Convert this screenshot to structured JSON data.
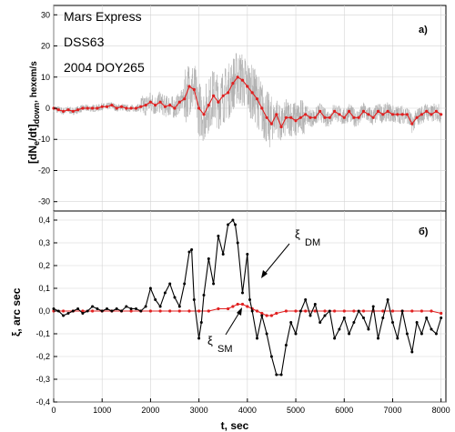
{
  "chart_data": [
    {
      "type": "line",
      "panel_label": "a)",
      "info_lines": [
        "Mars Express",
        "DSS63",
        "2004 DOY265"
      ],
      "ylabel": {
        "main": "[dN",
        "sub1": "e",
        "mid": "/dt]",
        "sub2": "down",
        "tail": ", hexem/s"
      },
      "xlim": [
        0,
        8100
      ],
      "ylim": [
        -33,
        33
      ],
      "yticks": [
        -30,
        -20,
        -10,
        0,
        10,
        20,
        30
      ],
      "grid": true,
      "series": [
        {
          "color": "#e02020",
          "marker": "dot",
          "x": [
            0,
            100,
            200,
            300,
            400,
            500,
            600,
            700,
            800,
            900,
            1000,
            1100,
            1200,
            1300,
            1400,
            1500,
            1600,
            1700,
            1800,
            1900,
            2000,
            2100,
            2200,
            2300,
            2400,
            2500,
            2600,
            2700,
            2800,
            2900,
            3000,
            3100,
            3200,
            3300,
            3400,
            3500,
            3600,
            3700,
            3800,
            3900,
            4000,
            4100,
            4200,
            4300,
            4400,
            4500,
            4600,
            4700,
            4800,
            4900,
            5000,
            5100,
            5200,
            5300,
            5400,
            5500,
            5600,
            5700,
            5800,
            5900,
            6000,
            6100,
            6200,
            6300,
            6400,
            6500,
            6600,
            6700,
            6800,
            6900,
            7000,
            7100,
            7200,
            7300,
            7400,
            7500,
            7600,
            7700,
            7800,
            7900,
            8000
          ],
          "y": [
            0,
            -0.5,
            -1,
            -0.5,
            -1,
            -0.5,
            0,
            0,
            0,
            0,
            0.5,
            0.5,
            1,
            0,
            0.5,
            0,
            0,
            0,
            0.5,
            1,
            2,
            1,
            2,
            0.5,
            1,
            0,
            2,
            3,
            7,
            6,
            0,
            -2,
            1,
            4,
            2,
            4,
            5,
            8,
            10,
            9,
            7,
            5,
            3,
            0,
            -3,
            -5,
            -2,
            -6,
            -3,
            -3,
            -4,
            -3,
            -2,
            -3,
            -3,
            -1,
            -3,
            -3,
            -1,
            -2,
            -3,
            -1,
            -3,
            -3,
            -1,
            -2,
            -3,
            -1,
            -2,
            -1,
            -2,
            -2,
            -2,
            -2,
            -5,
            -3,
            -2,
            -1,
            -2,
            -1,
            -2
          ]
        }
      ]
    },
    {
      "type": "line",
      "panel_label": "б)",
      "ylabel": "ξ, arc sec",
      "xlabel": "t, sec",
      "xlim": [
        0,
        8100
      ],
      "ylim": [
        -0.4,
        0.44
      ],
      "xticks": [
        0,
        1000,
        2000,
        3000,
        4000,
        5000,
        6000,
        7000,
        8000
      ],
      "yticks": [
        -0.4,
        -0.3,
        -0.2,
        -0.1,
        0.0,
        0.1,
        0.2,
        0.3,
        0.4
      ],
      "ytick_labels": [
        "-0,4",
        "-0,3",
        "-0,2",
        "-0,1",
        "0,0",
        "0,1",
        "0,2",
        "0,3",
        "0,4"
      ],
      "grid": true,
      "annotations": [
        {
          "text": "ξ",
          "sub": "DM"
        },
        {
          "text": "ξ",
          "sub": "SM"
        }
      ],
      "series": [
        {
          "label": "ξ DM",
          "color": "#000000",
          "x": [
            0,
            100,
            200,
            300,
            400,
            500,
            600,
            700,
            800,
            900,
            1000,
            1100,
            1200,
            1300,
            1400,
            1500,
            1600,
            1700,
            1800,
            1900,
            2000,
            2100,
            2200,
            2300,
            2400,
            2500,
            2600,
            2700,
            2800,
            2850,
            2900,
            3000,
            3050,
            3100,
            3200,
            3300,
            3400,
            3500,
            3600,
            3700,
            3750,
            3800,
            3900,
            4000,
            4050,
            4100,
            4200,
            4300,
            4400,
            4500,
            4600,
            4700,
            4800,
            4900,
            5000,
            5100,
            5200,
            5300,
            5400,
            5500,
            5600,
            5700,
            5800,
            5900,
            6000,
            6100,
            6200,
            6300,
            6400,
            6500,
            6600,
            6700,
            6800,
            6900,
            7000,
            7100,
            7200,
            7300,
            7400,
            7500,
            7600,
            7700,
            7800,
            7900,
            8000
          ],
          "y": [
            0.01,
            0,
            -0.02,
            -0.01,
            0,
            0.01,
            -0.01,
            0,
            0.02,
            0.01,
            0,
            0.01,
            0,
            0.01,
            0,
            0.02,
            0.01,
            0.01,
            0,
            0.02,
            0.1,
            0.05,
            0.02,
            0.08,
            0.12,
            0.06,
            0.02,
            0.12,
            0.26,
            0.27,
            0.05,
            -0.12,
            -0.05,
            0.07,
            0.23,
            0.12,
            0.33,
            0.25,
            0.38,
            0.4,
            0.38,
            0.3,
            0.08,
            0.25,
            0.05,
            0.0,
            -0.12,
            -0.02,
            -0.1,
            -0.2,
            -0.28,
            -0.28,
            -0.15,
            -0.05,
            -0.1,
            0.0,
            0.05,
            -0.02,
            0.03,
            -0.05,
            -0.02,
            0.0,
            -0.12,
            -0.08,
            -0.03,
            -0.1,
            -0.05,
            0.0,
            -0.03,
            -0.08,
            0.02,
            -0.12,
            -0.03,
            0.05,
            -0.05,
            -0.12,
            0.0,
            -0.1,
            -0.18,
            -0.05,
            -0.1,
            -0.03,
            -0.08,
            -0.1,
            -0.03
          ]
        },
        {
          "label": "ξ SM",
          "color": "#e02020",
          "x": [
            0,
            200,
            400,
            600,
            800,
            1000,
            1200,
            1400,
            1600,
            1800,
            2000,
            2200,
            2400,
            2600,
            2800,
            3000,
            3200,
            3400,
            3600,
            3700,
            3800,
            3900,
            4000,
            4100,
            4200,
            4300,
            4400,
            4500,
            4600,
            4800,
            5000,
            5200,
            5400,
            5600,
            5800,
            6000,
            6200,
            6400,
            6600,
            6800,
            7000,
            7200,
            7400,
            7600,
            7800,
            8000
          ],
          "y": [
            0,
            0,
            0,
            0,
            0,
            0,
            0,
            0,
            0,
            0,
            0,
            0,
            0,
            0,
            0,
            0,
            0,
            0.01,
            0.01,
            0.02,
            0.03,
            0.03,
            0.02,
            0.01,
            0,
            -0.01,
            -0.02,
            -0.02,
            -0.01,
            0,
            0,
            0,
            0,
            0,
            0,
            0,
            0,
            0,
            0,
            0,
            0,
            0,
            0,
            0,
            0,
            -0.01
          ]
        }
      ]
    }
  ]
}
